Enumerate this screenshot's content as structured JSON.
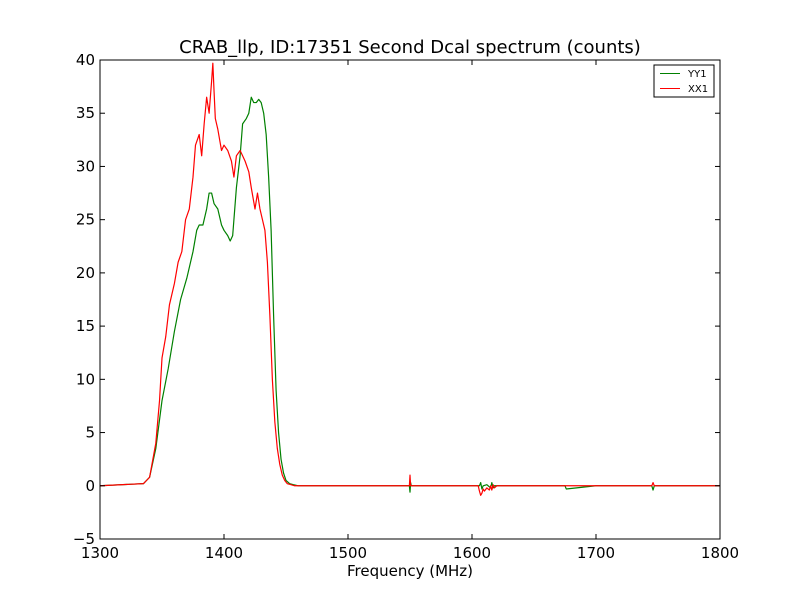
{
  "chart_data": {
    "type": "line",
    "title": "CRAB_llp, ID:17351 Second Dcal spectrum (counts)",
    "xlabel": "Frequency (MHz)",
    "ylabel": "",
    "xlim": [
      1300,
      1800
    ],
    "ylim": [
      -5,
      40
    ],
    "xticks": [
      1300,
      1400,
      1500,
      1600,
      1700,
      1800
    ],
    "yticks": [
      -5,
      0,
      5,
      10,
      15,
      20,
      25,
      30,
      35,
      40
    ],
    "xtick_labels": [
      "1300",
      "1400",
      "1500",
      "1600",
      "1700",
      "1800"
    ],
    "ytick_labels": [
      "−5",
      "0",
      "5",
      "10",
      "15",
      "20",
      "25",
      "30",
      "35",
      "40"
    ],
    "grid": false,
    "legend_position": "top-right",
    "series": [
      {
        "name": "YY1",
        "color": "#008000",
        "x": [
          1300,
          1335,
          1340,
          1345,
          1350,
          1355,
          1360,
          1365,
          1370,
          1375,
          1378,
          1380,
          1383,
          1386,
          1388,
          1390,
          1392,
          1395,
          1398,
          1400,
          1403,
          1405,
          1407,
          1410,
          1413,
          1415,
          1418,
          1420,
          1422,
          1424,
          1426,
          1428,
          1430,
          1432,
          1434,
          1436,
          1438,
          1440,
          1442,
          1444,
          1446,
          1448,
          1450,
          1453,
          1456,
          1460,
          1470,
          1500,
          1549.5,
          1550,
          1550.5,
          1551,
          1600,
          1606,
          1607,
          1608,
          1609,
          1612,
          1615,
          1616,
          1617,
          1618,
          1620,
          1640,
          1675,
          1676,
          1700,
          1745,
          1746,
          1747,
          1800
        ],
        "y": [
          0,
          0.2,
          0.8,
          3.5,
          8,
          11,
          14.5,
          17.5,
          19.5,
          22,
          24,
          24.5,
          24.5,
          26,
          27.5,
          27.5,
          26.5,
          26,
          24.5,
          24,
          23.5,
          23,
          23.5,
          28,
          31,
          34,
          34.5,
          35,
          36.5,
          36,
          36,
          36.3,
          36,
          35,
          33,
          29,
          24,
          16,
          9,
          5,
          2.5,
          1.2,
          0.5,
          0.2,
          0.1,
          0,
          0,
          0,
          0,
          -0.6,
          0.3,
          0,
          0,
          0,
          0.3,
          -0.3,
          0,
          0.1,
          -0.2,
          0.3,
          -0.2,
          0,
          0,
          0,
          0,
          -0.3,
          0,
          0,
          -0.4,
          0,
          0
        ]
      },
      {
        "name": "XX1",
        "color": "#ff0000",
        "x": [
          1300,
          1335,
          1340,
          1345,
          1348,
          1350,
          1353,
          1356,
          1360,
          1363,
          1366,
          1369,
          1372,
          1375,
          1377,
          1380,
          1382,
          1384,
          1386,
          1388,
          1390,
          1391,
          1392,
          1393,
          1395,
          1398,
          1400,
          1403,
          1406,
          1408,
          1410,
          1413,
          1415,
          1417,
          1420,
          1422,
          1425,
          1427,
          1429,
          1431,
          1433,
          1435,
          1437,
          1439,
          1441,
          1443,
          1445,
          1447,
          1449,
          1451,
          1454,
          1457,
          1460,
          1470,
          1500,
          1549.5,
          1550,
          1550.5,
          1551,
          1600,
          1605,
          1606,
          1607,
          1608,
          1609,
          1610,
          1612,
          1614,
          1615,
          1616,
          1617,
          1618,
          1620,
          1640,
          1700,
          1745,
          1746,
          1747,
          1800
        ],
        "y": [
          0,
          0.2,
          0.8,
          4,
          8,
          12,
          14,
          17,
          19,
          21,
          22,
          25,
          26,
          29,
          32,
          33,
          31,
          34,
          36.5,
          35,
          38,
          39.7,
          37,
          34.5,
          33.5,
          31.5,
          32,
          31.5,
          30.5,
          29,
          31,
          31.5,
          31,
          30.5,
          29.5,
          28,
          26,
          27.5,
          26,
          25,
          24,
          21,
          16,
          10,
          6,
          3.5,
          2,
          1,
          0.5,
          0.2,
          0.1,
          0,
          0,
          0,
          0,
          0,
          1,
          0,
          0,
          0,
          0,
          -0.5,
          -0.9,
          -0.7,
          -0.3,
          -0.5,
          -0.2,
          -0.4,
          0,
          -0.4,
          0.1,
          -0.2,
          0,
          0,
          0,
          0,
          0.3,
          0,
          0
        ]
      }
    ]
  }
}
